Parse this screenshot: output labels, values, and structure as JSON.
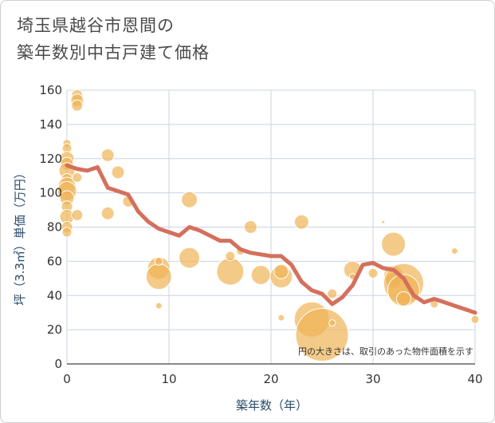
{
  "title": {
    "line1": "埼玉県越谷市恩間の",
    "line2": "築年数別中古戸建て価格"
  },
  "colors": {
    "bubble": "#f0b456",
    "line": "#d4705c",
    "grid": "#c9d4e0",
    "axis_title": "#2a4d6a"
  },
  "chart_data": {
    "type": "scatter",
    "title": "埼玉県越谷市恩間の築年数別中古戸建て価格",
    "xlabel": "築年数（年）",
    "ylabel": "坪（3.3㎡）単価（万円）",
    "xlim": [
      0,
      40
    ],
    "ylim": [
      0,
      160
    ],
    "xticks": [
      0,
      10,
      20,
      30,
      40
    ],
    "yticks": [
      0,
      20,
      40,
      60,
      80,
      100,
      120,
      140,
      160
    ],
    "note": "円の大きさは、取引のあった物件面積を示す",
    "bubbles": [
      {
        "x": 0,
        "y": 129,
        "s": 5
      },
      {
        "x": 0,
        "y": 126,
        "s": 6
      },
      {
        "x": 0,
        "y": 120,
        "s": 9
      },
      {
        "x": 0,
        "y": 117,
        "s": 8
      },
      {
        "x": 0,
        "y": 113,
        "s": 10
      },
      {
        "x": 0,
        "y": 108,
        "s": 7
      },
      {
        "x": 0,
        "y": 104,
        "s": 11
      },
      {
        "x": 0,
        "y": 101,
        "s": 12
      },
      {
        "x": 0,
        "y": 97,
        "s": 9
      },
      {
        "x": 0,
        "y": 92,
        "s": 7
      },
      {
        "x": 0,
        "y": 86,
        "s": 9
      },
      {
        "x": 0,
        "y": 80,
        "s": 7
      },
      {
        "x": 0,
        "y": 77,
        "s": 6
      },
      {
        "x": 1,
        "y": 157,
        "s": 7
      },
      {
        "x": 1,
        "y": 154,
        "s": 8
      },
      {
        "x": 1,
        "y": 151,
        "s": 7
      },
      {
        "x": 1,
        "y": 109,
        "s": 6
      },
      {
        "x": 1,
        "y": 87,
        "s": 7
      },
      {
        "x": 4,
        "y": 122,
        "s": 8
      },
      {
        "x": 4,
        "y": 88,
        "s": 8
      },
      {
        "x": 5,
        "y": 112,
        "s": 8
      },
      {
        "x": 6,
        "y": 95,
        "s": 7
      },
      {
        "x": 9,
        "y": 56,
        "s": 14
      },
      {
        "x": 9,
        "y": 51,
        "s": 16
      },
      {
        "x": 9,
        "y": 60,
        "s": 5
      },
      {
        "x": 9,
        "y": 34,
        "s": 4
      },
      {
        "x": 12,
        "y": 96,
        "s": 10
      },
      {
        "x": 12,
        "y": 62,
        "s": 13
      },
      {
        "x": 16,
        "y": 54,
        "s": 17
      },
      {
        "x": 16,
        "y": 63,
        "s": 6
      },
      {
        "x": 17,
        "y": 66,
        "s": 5
      },
      {
        "x": 18,
        "y": 80,
        "s": 8
      },
      {
        "x": 19,
        "y": 52,
        "s": 12
      },
      {
        "x": 21,
        "y": 51,
        "s": 14
      },
      {
        "x": 21,
        "y": 54,
        "s": 9
      },
      {
        "x": 21,
        "y": 27,
        "s": 4
      },
      {
        "x": 23,
        "y": 83,
        "s": 9
      },
      {
        "x": 24,
        "y": 26,
        "s": 22
      },
      {
        "x": 25,
        "y": 17,
        "s": 33
      },
      {
        "x": 26,
        "y": 41,
        "s": 6
      },
      {
        "x": 26,
        "y": 24,
        "s": 4
      },
      {
        "x": 28,
        "y": 55,
        "s": 11
      },
      {
        "x": 28,
        "y": 51,
        "s": 4
      },
      {
        "x": 30,
        "y": 53,
        "s": 6
      },
      {
        "x": 31,
        "y": 83,
        "s": 2
      },
      {
        "x": 32,
        "y": 70,
        "s": 15
      },
      {
        "x": 32,
        "y": 52,
        "s": 12
      },
      {
        "x": 32,
        "y": 49,
        "s": 10
      },
      {
        "x": 33,
        "y": 47,
        "s": 25
      },
      {
        "x": 33,
        "y": 43,
        "s": 20
      },
      {
        "x": 33,
        "y": 38,
        "s": 9
      },
      {
        "x": 36,
        "y": 35,
        "s": 5
      },
      {
        "x": 38,
        "y": 66,
        "s": 4
      },
      {
        "x": 40,
        "y": 26,
        "s": 5
      }
    ],
    "trend": {
      "x": [
        0,
        1,
        2,
        3,
        4,
        5,
        6,
        7,
        8,
        9,
        10,
        11,
        12,
        13,
        14,
        15,
        16,
        17,
        18,
        19,
        20,
        21,
        22,
        23,
        24,
        25,
        26,
        27,
        28,
        29,
        30,
        31,
        32,
        33,
        34,
        35,
        36,
        37,
        38,
        39,
        40
      ],
      "y": [
        116,
        114,
        113,
        115,
        103,
        101,
        99,
        89,
        83,
        79,
        77,
        75,
        80,
        78,
        75,
        72,
        72,
        67,
        65,
        64,
        63,
        63,
        58,
        48,
        43,
        41,
        35,
        39,
        46,
        58,
        59,
        56,
        55,
        50,
        40,
        36,
        38,
        36,
        34,
        32,
        30
      ]
    }
  }
}
